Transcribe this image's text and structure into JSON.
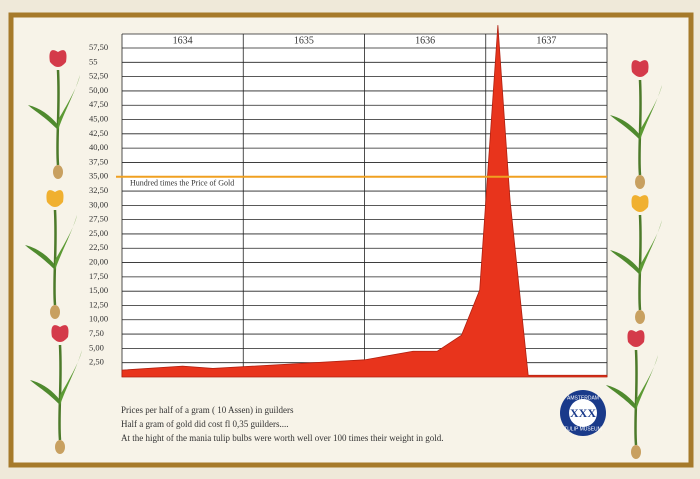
{
  "chart_data": {
    "type": "area",
    "color": "#e8341c",
    "x": [
      1634.0,
      1634.5,
      1634.75,
      1635.5,
      1636.0,
      1636.4,
      1636.6,
      1636.8,
      1636.95,
      1637.1,
      1637.2,
      1637.35,
      1638.0
    ],
    "values": [
      1.2,
      1.9,
      1.5,
      2.4,
      3.0,
      4.5,
      4.5,
      7.3,
      15.2,
      61.5,
      31,
      0.3,
      0.3
    ],
    "xlim": [
      1634,
      1638
    ],
    "xticks": [
      {
        "value": 1634.5,
        "label": "1634"
      },
      {
        "value": 1635.5,
        "label": "1635"
      },
      {
        "value": 1636.5,
        "label": "1636"
      },
      {
        "value": 1637.5,
        "label": "1637"
      }
    ],
    "ylim": [
      0,
      57.5
    ],
    "yticks": [
      {
        "value": 2.5,
        "label": "2,50"
      },
      {
        "value": 5,
        "label": "5,00"
      },
      {
        "value": 7.5,
        "label": "7,50"
      },
      {
        "value": 10,
        "label": "10,00"
      },
      {
        "value": 12.5,
        "label": "12,50"
      },
      {
        "value": 15,
        "label": "15,00"
      },
      {
        "value": 17.5,
        "label": "17,50"
      },
      {
        "value": 20,
        "label": "20,00"
      },
      {
        "value": 22.5,
        "label": "22,50"
      },
      {
        "value": 25,
        "label": "25,00"
      },
      {
        "value": 27.5,
        "label": "27,50"
      },
      {
        "value": 30,
        "label": "30,00"
      },
      {
        "value": 32.5,
        "label": "32,50"
      },
      {
        "value": 35,
        "label": "35,00"
      },
      {
        "value": 37.5,
        "label": "37,50"
      },
      {
        "value": 40,
        "label": "40,00"
      },
      {
        "value": 42.5,
        "label": "42,50"
      },
      {
        "value": 45,
        "label": "45,00"
      },
      {
        "value": 47.5,
        "label": "47,50"
      },
      {
        "value": 50,
        "label": "50,00"
      },
      {
        "value": 52.5,
        "label": "52,50"
      },
      {
        "value": 55,
        "label": "55"
      },
      {
        "value": 57.5,
        "label": "57,50"
      }
    ],
    "grid": true,
    "reference_line": {
      "value": 35,
      "label": "Hundred times the Price of Gold",
      "color": "#f0a020"
    },
    "notes": [
      "Prices per half of a gram ( 10 Assen) in guilders",
      "Half a gram of gold did cost fl 0,35 guilders....",
      "At the hight of the mania tulip bulbs were worth well over 100 times their weight in gold."
    ],
    "logo": {
      "top": "AMSTERDAM",
      "bottom": "TULIP MUSEUM"
    }
  }
}
